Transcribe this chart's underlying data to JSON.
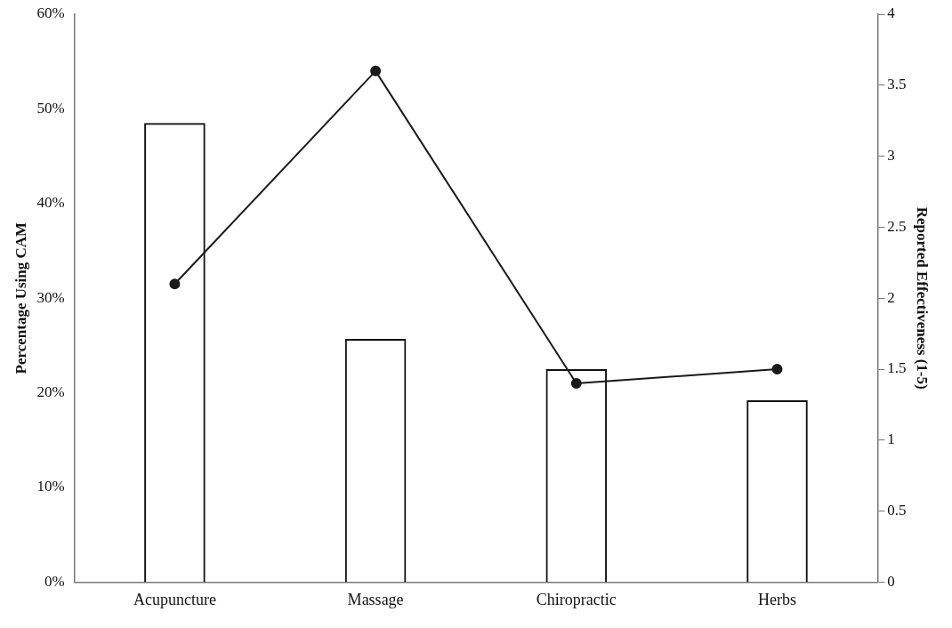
{
  "chart_data": {
    "type": "bar",
    "ylabel": "Percentage Using CAM",
    "y2label": "Reported Effectiveness (1-5)",
    "categories": [
      "Acupuncture",
      "Massage",
      "Chiropractic",
      "Herbs"
    ],
    "series": [
      {
        "color": "#111111",
        "values": [
          48.5,
          25.7,
          22.5,
          19.2
        ]
      },
      {
        "type": "line",
        "axis": "y2",
        "color": "#1a1a1a",
        "values": [
          2.1,
          3.6,
          1.4,
          1.5
        ]
      }
    ],
    "ylim": [
      0,
      60
    ],
    "yticks": [
      {
        "value": 0,
        "label": "0%"
      },
      {
        "value": 10,
        "label": "10%"
      },
      {
        "value": 20,
        "label": "20%"
      },
      {
        "value": 30,
        "label": "30%"
      },
      {
        "value": 40,
        "label": "40%"
      },
      {
        "value": 50,
        "label": "50%"
      },
      {
        "value": 60,
        "label": "60%"
      }
    ],
    "y2lim": [
      0,
      4
    ],
    "y2ticks": [
      0,
      0.5,
      1,
      1.5,
      2,
      2.5,
      3,
      3.5,
      4
    ],
    "grid": false,
    "legend": false,
    "marker": "circle",
    "line_style": "solid"
  }
}
